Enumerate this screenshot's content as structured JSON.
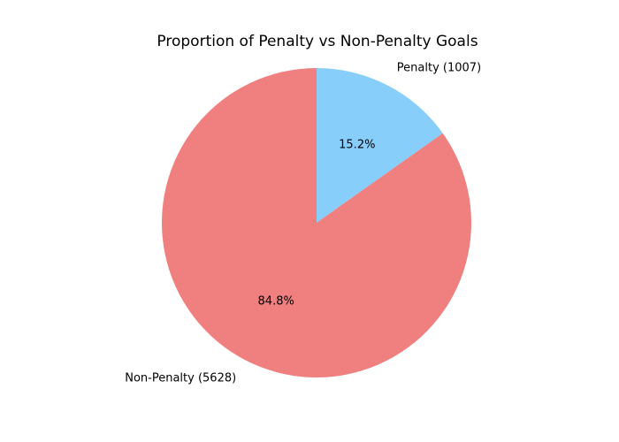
{
  "chart_data": {
    "type": "pie",
    "title": "Proportion of Penalty vs Non-Penalty Goals",
    "slices": [
      {
        "label": "Penalty (1007)",
        "value": 1007,
        "percent_label": "15.2%",
        "color": "#87CEFA"
      },
      {
        "label": "Non-Penalty (5628)",
        "value": 5628,
        "percent_label": "84.8%",
        "color": "#F08080"
      }
    ],
    "start_angle": "12 o'clock",
    "direction": "clockwise"
  }
}
